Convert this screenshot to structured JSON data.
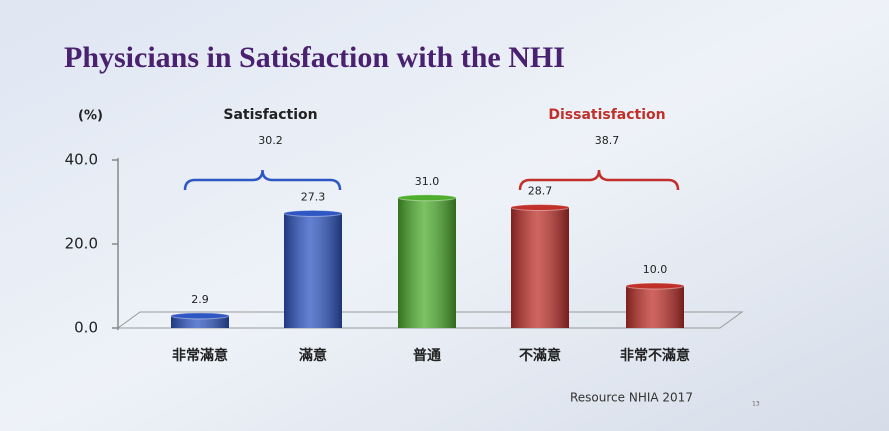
{
  "chart_data": {
    "type": "bar",
    "title": "Physicians in Satisfaction with the NHI",
    "y_unit": "(%)",
    "categories": [
      "非常滿意",
      "滿意",
      "普通",
      "不滿意",
      "非常不滿意"
    ],
    "values": [
      2.9,
      27.3,
      31.0,
      28.7,
      10.0
    ],
    "value_labels": [
      "2.9",
      "27.3",
      "31.0",
      "28.7",
      "10.0"
    ],
    "colors": [
      "#2f57c4",
      "#2f57c4",
      "#4fae2e",
      "#c0312c",
      "#c0312c"
    ],
    "ylim": [
      0,
      40
    ],
    "yticks": [
      {
        "value": 0,
        "label": "0.0"
      },
      {
        "value": 20,
        "label": "20.0"
      },
      {
        "value": 40,
        "label": "40.0"
      }
    ],
    "groups": [
      {
        "label": "Satisfaction",
        "value": 30.2,
        "color": "#222222"
      },
      {
        "label": "Dissatisfaction",
        "value": 38.7,
        "color": "#c0312c"
      }
    ],
    "source": "Resource NHIA 2017",
    "page_number": "13"
  }
}
